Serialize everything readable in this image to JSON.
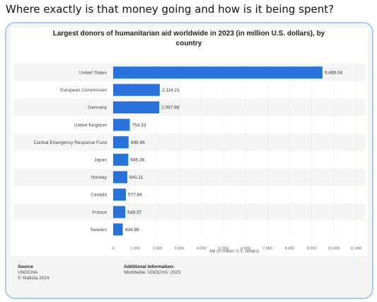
{
  "post": {
    "text": "Where exactly is that money going and how is it being spent?"
  },
  "chart_data": {
    "type": "bar",
    "orientation": "horizontal",
    "title": "Largest donors of humanitarian aid worldwide in 2023 (in million U.S. dollars), by country",
    "title_line1": "Largest donors of humanitarian aid worldwide in 2023 (in million U.S. dollars), by",
    "title_line2": "country",
    "categories": [
      "United States",
      "European Commission",
      "Germany",
      "United Kingdom",
      "Central Emergency Response Fund",
      "Japan",
      "Norway",
      "Canada",
      "France",
      "Sweden"
    ],
    "values": [
      9489.04,
      2114.21,
      2087.98,
      754.33,
      699.96,
      685.36,
      641.11,
      577.84,
      549.37,
      434.98
    ],
    "value_labels": [
      "9,489.04",
      "2,114.21",
      "2,087.98",
      "754.33",
      "699.96",
      "685.36",
      "641.11",
      "577.84",
      "549.37",
      "434.98"
    ],
    "xlabel": "Aid (in million U.S. dollars)",
    "ylabel": "",
    "xlim": [
      0,
      11000
    ],
    "x_ticks": [
      0,
      1000,
      2000,
      3000,
      4000,
      5000,
      6000,
      7000,
      8000,
      9000,
      10000,
      11000
    ],
    "x_tick_labels": [
      "0",
      "1,000",
      "2,000",
      "3,000",
      "4,000",
      "5,000",
      "6,000",
      "7,000",
      "8,000",
      "9,000",
      "10,000",
      "11,000"
    ],
    "bar_color": "#2872d9",
    "grid": true
  },
  "footer": {
    "source_heading": "Source",
    "source_line1": "UNOCHA",
    "source_line2": "© Statista 2024",
    "info_heading": "Additional Information:",
    "info_line1": "Worldwide; UNOCHA; 2023"
  }
}
